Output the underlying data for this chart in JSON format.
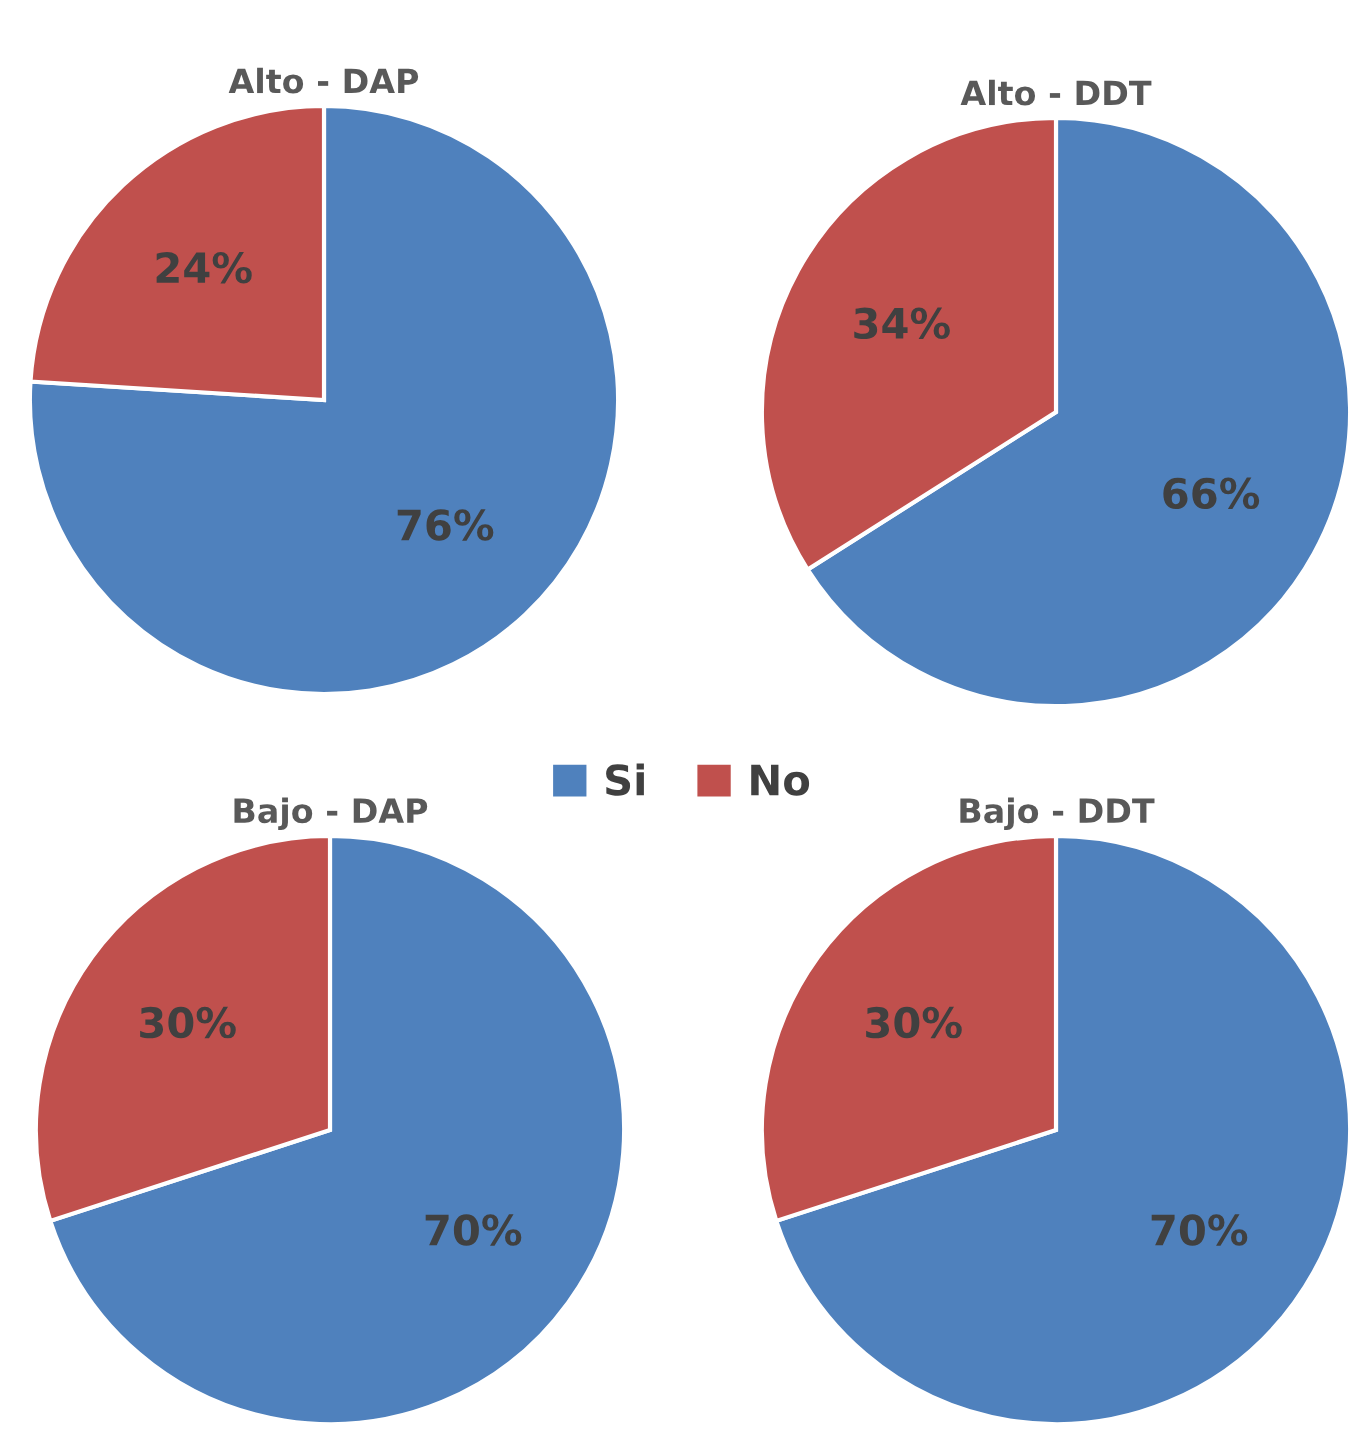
{
  "chart_data": [
    {
      "type": "pie",
      "title": "Alto - DAP",
      "categories": [
        "Si",
        "No"
      ],
      "values": [
        76,
        24
      ],
      "colors": [
        "#4f81bd",
        "#c0504d"
      ],
      "value_labels": [
        "76%",
        "24%"
      ],
      "legend": "bottom"
    },
    {
      "type": "pie",
      "title": "Alto - DDT",
      "categories": [
        null,
        null
      ],
      "values": [
        66,
        34
      ],
      "colors": [
        "#4f81bd",
        "#c0504d"
      ],
      "value_labels": [
        "66%",
        "34%"
      ]
    },
    {
      "type": "pie",
      "title": "Bajo - DAP",
      "categories": [
        null,
        null
      ],
      "values": [
        70,
        30
      ],
      "colors": [
        "#4f81bd",
        "#c0504d"
      ],
      "value_labels": [
        "70%",
        "30%"
      ]
    },
    {
      "type": "pie",
      "title": "Bajo - DDT",
      "categories": [
        null,
        null
      ],
      "values": [
        70,
        30
      ],
      "colors": [
        "#4f81bd",
        "#c0504d"
      ],
      "value_labels": [
        "70%",
        "30%"
      ]
    }
  ]
}
